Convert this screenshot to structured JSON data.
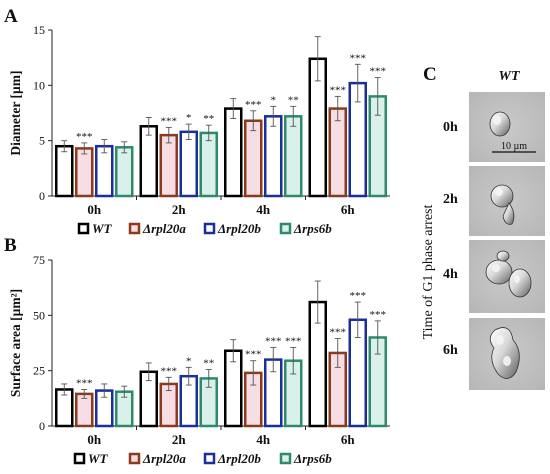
{
  "panel_labels": {
    "a": "A",
    "b": "B",
    "c": "C"
  },
  "chart_data": [
    {
      "type": "bar",
      "panel": "A",
      "title": "",
      "ylabel": "Diameter [µm]",
      "ylim": [
        0,
        15
      ],
      "yticks": [
        "0",
        "5",
        "10",
        "15"
      ],
      "categories": [
        "0h",
        "2h",
        "4h",
        "6h"
      ],
      "series": [
        {
          "name": "WT",
          "values": [
            4.5,
            6.3,
            7.9,
            12.4
          ],
          "errors": [
            0.5,
            0.8,
            0.9,
            2.0
          ]
        },
        {
          "name": "Δrpl20a",
          "values": [
            4.3,
            5.5,
            6.8,
            7.9
          ],
          "errors": [
            0.5,
            0.7,
            0.9,
            1.1
          ]
        },
        {
          "name": "Δrpl20b",
          "values": [
            4.5,
            5.8,
            7.2,
            10.2
          ],
          "errors": [
            0.6,
            0.7,
            0.9,
            1.7
          ]
        },
        {
          "name": "Δrps6b",
          "values": [
            4.4,
            5.7,
            7.2,
            9.0
          ],
          "errors": [
            0.5,
            0.7,
            0.9,
            1.7
          ]
        }
      ],
      "significance": [
        [
          "",
          "***",
          "",
          ""
        ],
        [
          "",
          "***",
          "*",
          "**"
        ],
        [
          "",
          "***",
          "*",
          "**"
        ],
        [
          "",
          "***",
          "***",
          "***"
        ]
      ],
      "legend": "below"
    },
    {
      "type": "bar",
      "panel": "B",
      "title": "",
      "ylabel": "Surface area [µm²]",
      "ylim": [
        0,
        75
      ],
      "yticks": [
        "0",
        "25",
        "50",
        "75"
      ],
      "categories": [
        "0h",
        "2h",
        "4h",
        "6h"
      ],
      "series": [
        {
          "name": "WT",
          "values": [
            16.5,
            24.5,
            34.0,
            56.0
          ],
          "errors": [
            2.5,
            4.0,
            5.0,
            9.5
          ]
        },
        {
          "name": "Δrpl20a",
          "values": [
            14.5,
            19.0,
            24.0,
            33.0
          ],
          "errors": [
            2.0,
            3.0,
            5.5,
            6.5
          ]
        },
        {
          "name": "Δrpl20b",
          "values": [
            16.0,
            22.5,
            30.0,
            48.0
          ],
          "errors": [
            3.0,
            4.0,
            5.5,
            8.0
          ]
        },
        {
          "name": "Δrps6b",
          "values": [
            15.5,
            21.5,
            29.5,
            40.0
          ],
          "errors": [
            2.5,
            4.0,
            6.0,
            7.5
          ]
        }
      ],
      "significance": [
        [
          "",
          "***",
          "",
          ""
        ],
        [
          "",
          "***",
          "*",
          "**"
        ],
        [
          "",
          "***",
          "***",
          "***"
        ],
        [
          "",
          "***",
          "***",
          "***"
        ]
      ],
      "legend": "below"
    }
  ],
  "legend_items": [
    "WT",
    "Δrpl20a",
    "Δrpl20b",
    "Δrps6b"
  ],
  "colors": {
    "WT": {
      "stroke": "#000000",
      "fill": "#ffffff"
    },
    "Δrpl20a": {
      "stroke": "#8b3a1a",
      "fill": "#f6dde6"
    },
    "Δrpl20b": {
      "stroke": "#1a2f9a",
      "fill": "#ffffff"
    },
    "Δrps6b": {
      "stroke": "#2f8a6d",
      "fill": "#d9f1ea"
    }
  },
  "panel_c": {
    "header": "WT",
    "side_label": "Time of G1 phase arrest",
    "timepoints": [
      "0h",
      "2h",
      "4h",
      "6h"
    ],
    "scale_bar": "10 µm"
  }
}
